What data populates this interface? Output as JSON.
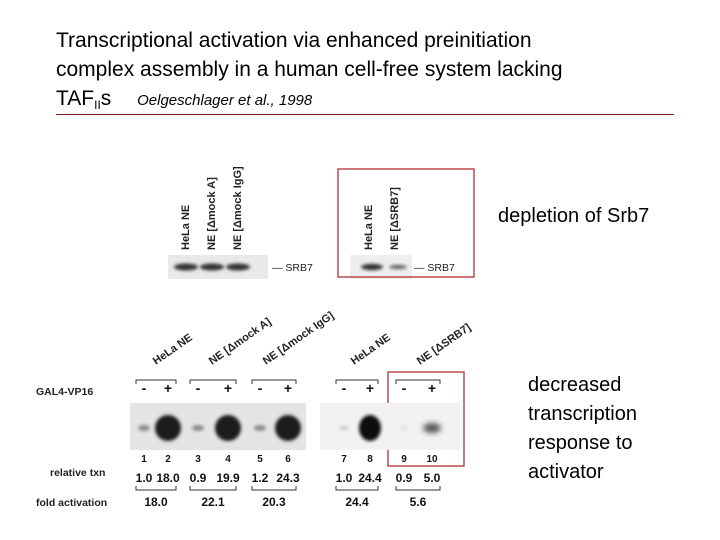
{
  "slide": {
    "title_line1": "Transcriptional activation via enhanced preinitiation",
    "title_line2": "complex assembly in a human cell-free system lacking",
    "title_line3_main": "TAF",
    "title_line3_sub": "II",
    "title_line3_end": "s",
    "citation": "Oelgeschlager et al., 1998",
    "callout_depletion": "depletion of Srb7",
    "callout_response": [
      "decreased",
      "transcription",
      "response to",
      "activator"
    ]
  },
  "western": {
    "left_lanes": [
      "HeLa NE",
      "NE [Δmock A]",
      "NE [Δmock IgG]"
    ],
    "right_lanes": [
      "HeLa NE",
      "NE [ΔSRB7]"
    ],
    "band_label": "— SRB7"
  },
  "transcription": {
    "row_label_activator": "GAL4-VP16",
    "row_label_txn": "relative txn",
    "row_label_fold": "fold activation",
    "groups": [
      "HeLa NE",
      "NE [Δmock A]",
      "NE [Δmock IgG]",
      "HeLa NE",
      "NE [ΔSRB7]"
    ],
    "lanes": [
      {
        "n": "1",
        "sign": "-",
        "txn": "1.0"
      },
      {
        "n": "2",
        "sign": "+",
        "txn": "18.0"
      },
      {
        "n": "3",
        "sign": "-",
        "txn": "0.9"
      },
      {
        "n": "4",
        "sign": "+",
        "txn": "19.9"
      },
      {
        "n": "5",
        "sign": "-",
        "txn": "1.2"
      },
      {
        "n": "6",
        "sign": "+",
        "txn": "24.3"
      },
      {
        "n": "7",
        "sign": "-",
        "txn": "1.0"
      },
      {
        "n": "8",
        "sign": "+",
        "txn": "24.4"
      },
      {
        "n": "9",
        "sign": "-",
        "txn": "0.9"
      },
      {
        "n": "10",
        "sign": "+",
        "txn": "5.0"
      }
    ],
    "fold": [
      "18.0",
      "22.1",
      "20.3",
      "24.4",
      "5.6"
    ]
  },
  "colors": {
    "highlight_box": "#b03030",
    "rule": "#8b1a1a"
  }
}
